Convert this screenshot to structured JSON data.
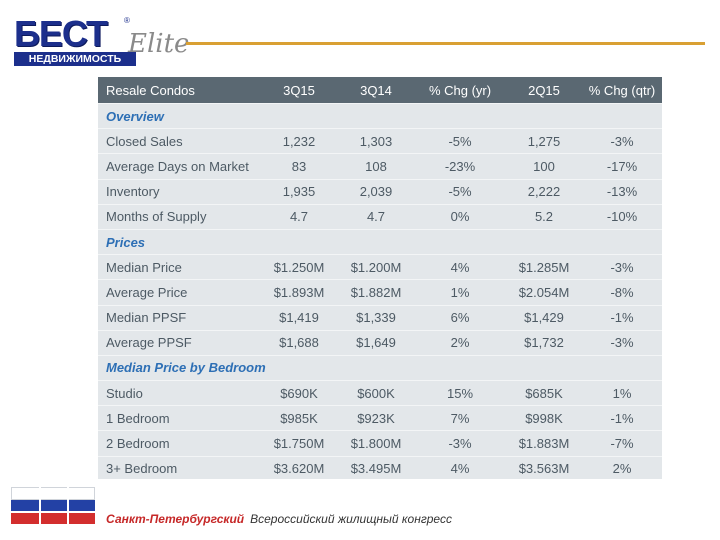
{
  "logo": {
    "main": "БЕСТ",
    "reg": "®",
    "script": "Elite",
    "sub": "НЕДВИЖИМОСТЬ"
  },
  "table": {
    "headers": [
      "Resale Condos",
      "3Q15",
      "3Q14",
      "% Chg (yr)",
      "2Q15",
      "% Chg (qtr)"
    ],
    "sections": [
      {
        "title": "Overview",
        "rows": [
          [
            "Closed Sales",
            "1,232",
            "1,303",
            "-5%",
            "1,275",
            "-3%"
          ],
          [
            "Average Days on Market",
            "83",
            "108",
            "-23%",
            "100",
            "-17%"
          ],
          [
            "Inventory",
            "1,935",
            "2,039",
            "-5%",
            "2,222",
            "-13%"
          ],
          [
            "Months of Supply",
            "4.7",
            "4.7",
            "0%",
            "5.2",
            "-10%"
          ]
        ]
      },
      {
        "title": "Prices",
        "rows": [
          [
            "Median Price",
            "$1.250M",
            "$1.200M",
            "4%",
            "$1.285M",
            "-3%"
          ],
          [
            "Average Price",
            "$1.893M",
            "$1.882M",
            "1%",
            "$2.054M",
            "-8%"
          ],
          [
            "Median PPSF",
            "$1,419",
            "$1,339",
            "6%",
            "$1,429",
            "-1%"
          ],
          [
            "Average PPSF",
            "$1,688",
            "$1,649",
            "2%",
            "$1,732",
            "-3%"
          ]
        ]
      },
      {
        "title": "Median Price by Bedroom",
        "rows": [
          [
            "Studio",
            "$690K",
            "$600K",
            "15%",
            "$685K",
            "1%"
          ],
          [
            "1 Bedroom",
            "$985K",
            "$923K",
            "7%",
            "$998K",
            "-1%"
          ],
          [
            "2 Bedroom",
            "$1.750M",
            "$1.800M",
            "-3%",
            "$1.883M",
            "-7%"
          ],
          [
            "3+ Bedroom",
            "$3.620M",
            "$3.495M",
            "4%",
            "$3.563M",
            "2%"
          ]
        ]
      }
    ]
  },
  "footer": {
    "city": "Санкт-Петербургский",
    "congress": "Всероссийский жилищный конгресс"
  },
  "colors": {
    "brand_blue": "#1c2f8c",
    "accent_gold": "#d9a033",
    "header_bg": "#5a6872",
    "section_blue": "#2d6fb5",
    "flag_red": "#d32e2e"
  }
}
